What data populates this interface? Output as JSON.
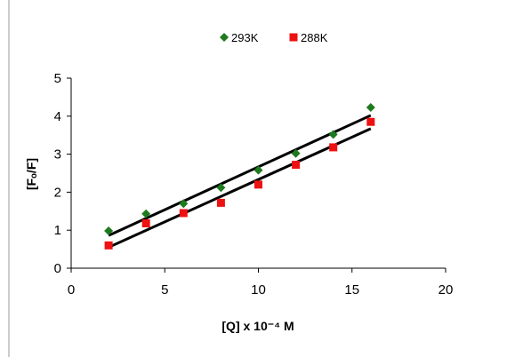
{
  "chart_data": {
    "type": "scatter",
    "xlabel": "[Q] x 10⁻⁴ M",
    "ylabel": "[Fₒ/F]",
    "xlim": [
      0,
      20
    ],
    "ylim": [
      0,
      5
    ],
    "xticks": [
      0,
      5,
      10,
      15,
      20
    ],
    "yticks": [
      0,
      1,
      2,
      3,
      4,
      5
    ],
    "grid": false,
    "legend_position": "top",
    "series": [
      {
        "name": "293K",
        "marker": "diamond",
        "color": "#1e7a1e",
        "x": [
          2,
          4,
          6,
          8,
          10,
          12,
          14,
          16
        ],
        "y": [
          0.98,
          1.43,
          1.7,
          2.12,
          2.58,
          3.02,
          3.52,
          4.23
        ],
        "trendline": {
          "x": [
            2,
            16
          ],
          "y": [
            0.86,
            4.02
          ]
        }
      },
      {
        "name": "288K",
        "marker": "square",
        "color": "#ee1111",
        "x": [
          2,
          4,
          6,
          8,
          10,
          12,
          14,
          16
        ],
        "y": [
          0.6,
          1.18,
          1.45,
          1.72,
          2.2,
          2.72,
          3.18,
          3.85
        ],
        "trendline": {
          "x": [
            2,
            16
          ],
          "y": [
            0.55,
            3.67
          ]
        }
      }
    ]
  }
}
